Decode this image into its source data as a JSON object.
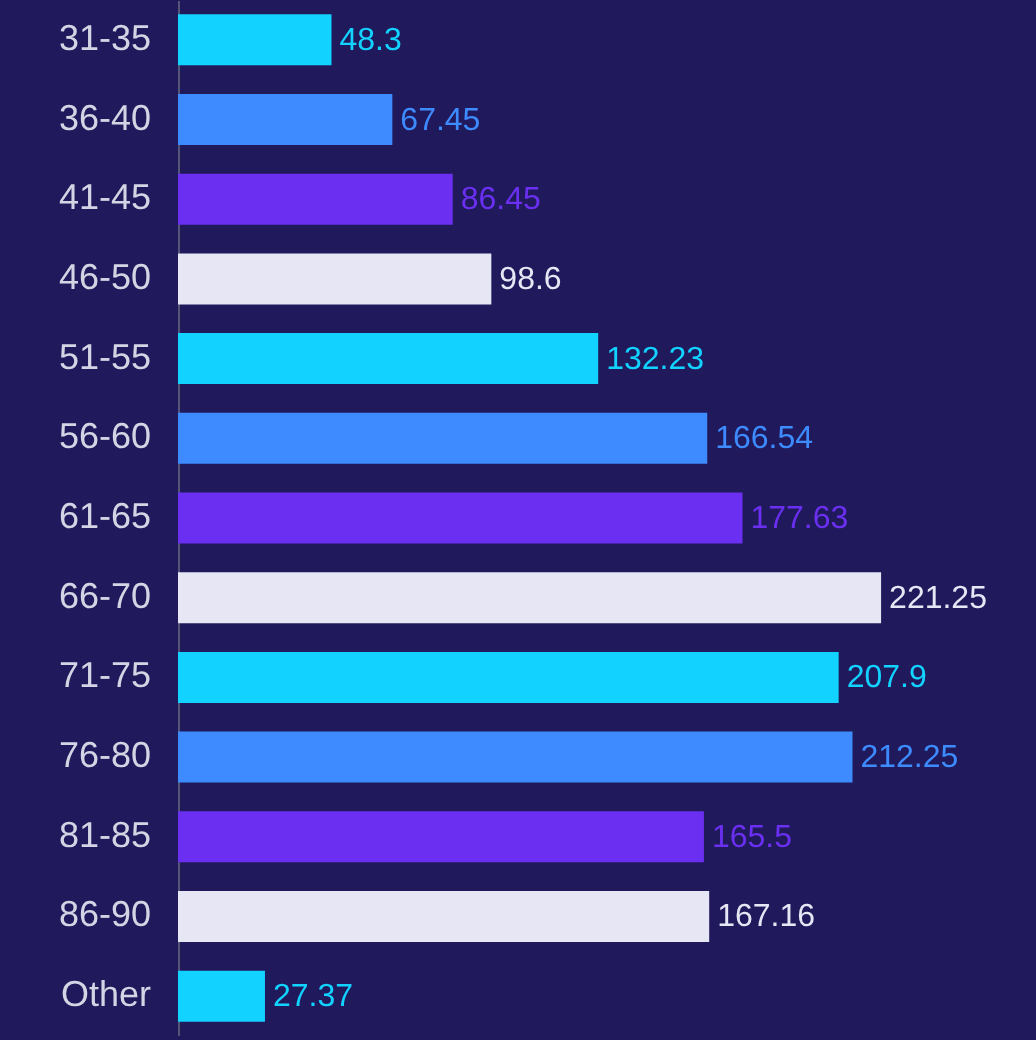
{
  "chart_data": {
    "type": "bar",
    "orientation": "horizontal",
    "data_labels": true,
    "xlim": [
      0,
      270
    ],
    "categories": [
      "31-35",
      "36-40",
      "41-45",
      "46-50",
      "51-55",
      "56-60",
      "61-65",
      "66-70",
      "71-75",
      "76-80",
      "81-85",
      "86-90",
      "Other"
    ],
    "values": [
      48.3,
      67.45,
      86.45,
      98.6,
      132.23,
      166.54,
      177.63,
      221.25,
      207.9,
      212.25,
      165.5,
      167.16,
      27.37
    ],
    "colors": [
      "#12d2ff",
      "#3d8bff",
      "#6a2ff0",
      "#e6e6f5",
      "#12d2ff",
      "#3d8bff",
      "#6a2ff0",
      "#e6e6f5",
      "#12d2ff",
      "#3d8bff",
      "#6a2ff0",
      "#e6e6f5",
      "#12d2ff"
    ]
  }
}
